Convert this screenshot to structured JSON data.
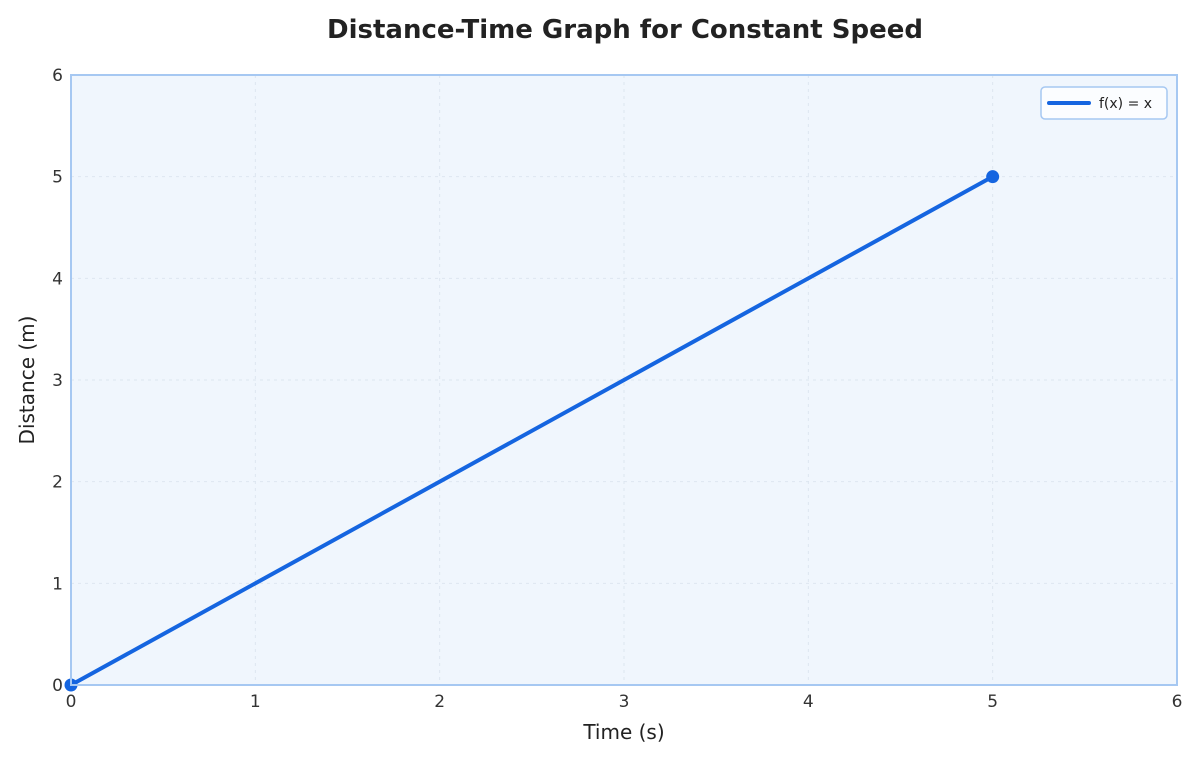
{
  "chart_data": {
    "type": "line",
    "title": "Distance-Time Graph for Constant Speed",
    "xlabel": "Time (s)",
    "ylabel": "Distance (m)",
    "xlim": [
      0,
      6
    ],
    "ylim": [
      0,
      6
    ],
    "x_ticks": [
      "0",
      "1",
      "2",
      "3",
      "4",
      "5",
      "6"
    ],
    "y_ticks": [
      "0",
      "1",
      "2",
      "3",
      "4",
      "5",
      "6"
    ],
    "grid": true,
    "legend_position": "top-right",
    "series": [
      {
        "name": "f(x) = x",
        "color": "#1565e0",
        "points": [
          {
            "x": 0,
            "y": 0
          },
          {
            "x": 5,
            "y": 5
          }
        ],
        "markers_at_endpoints": true
      }
    ],
    "colors": {
      "plot_background": "#f0f6fd",
      "plot_border": "#a6c8f2",
      "grid": "#dde6f0",
      "line": "#1565e0"
    }
  }
}
